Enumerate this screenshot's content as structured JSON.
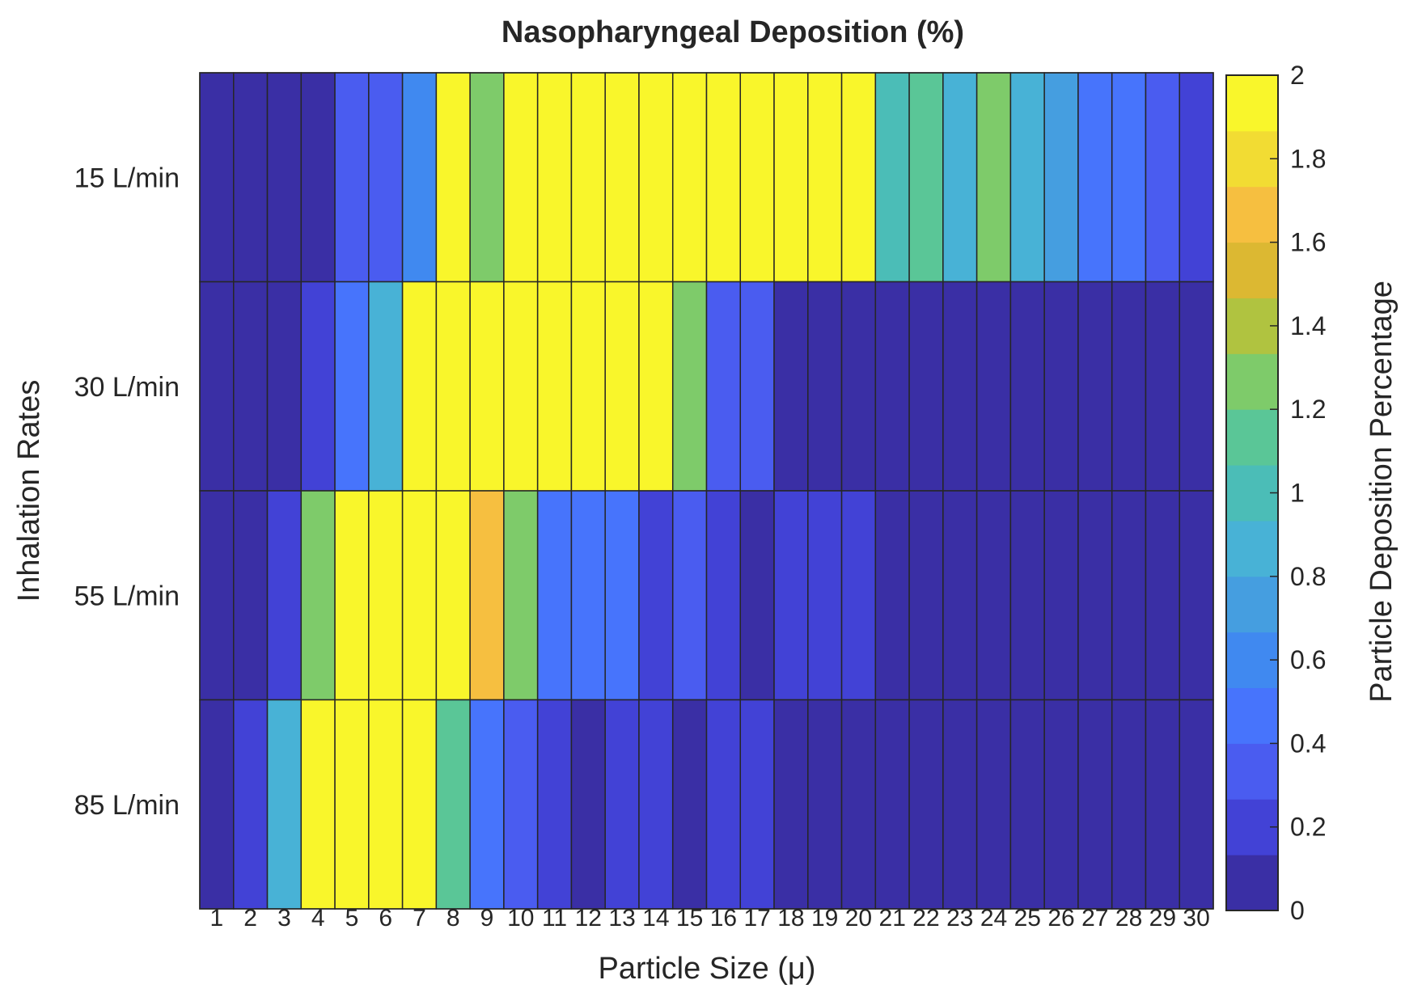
{
  "chart_data": {
    "type": "heatmap",
    "title": "Nasopharyngeal Deposition (%)",
    "xlabel": "Particle Size (μ)",
    "ylabel": "Inhalation Rates",
    "x": [
      "1",
      "2",
      "3",
      "4",
      "5",
      "6",
      "7",
      "8",
      "9",
      "10",
      "11",
      "12",
      "13",
      "14",
      "15",
      "16",
      "17",
      "18",
      "19",
      "20",
      "21",
      "22",
      "23",
      "24",
      "25",
      "26",
      "27",
      "28",
      "29",
      "30"
    ],
    "y": [
      "15 L/min",
      "30 L/min",
      "55 L/min",
      "85 L/min"
    ],
    "values": [
      [
        0.05,
        0.05,
        0.05,
        0.05,
        0.33,
        0.33,
        0.6,
        2.0,
        1.27,
        2.0,
        2.0,
        2.0,
        2.0,
        2.0,
        2.0,
        2.0,
        2.0,
        2.0,
        2.0,
        2.0,
        1.0,
        1.13,
        0.87,
        1.27,
        0.87,
        0.73,
        0.47,
        0.47,
        0.33,
        0.2
      ],
      [
        0.05,
        0.05,
        0.05,
        0.2,
        0.47,
        0.87,
        2.0,
        2.0,
        2.0,
        2.0,
        2.0,
        2.0,
        2.0,
        2.0,
        1.27,
        0.33,
        0.33,
        0.05,
        0.05,
        0.05,
        0.05,
        0.05,
        0.05,
        0.05,
        0.05,
        0.05,
        0.05,
        0.05,
        0.05,
        0.05
      ],
      [
        0.05,
        0.05,
        0.2,
        1.27,
        2.0,
        2.0,
        2.0,
        2.0,
        1.67,
        1.27,
        0.47,
        0.47,
        0.47,
        0.2,
        0.33,
        0.2,
        0.05,
        0.2,
        0.2,
        0.2,
        0.05,
        0.05,
        0.05,
        0.05,
        0.05,
        0.05,
        0.05,
        0.05,
        0.05,
        0.05
      ],
      [
        0.05,
        0.2,
        0.87,
        2.0,
        2.0,
        2.0,
        2.0,
        1.13,
        0.47,
        0.33,
        0.2,
        0.05,
        0.2,
        0.2,
        0.05,
        0.2,
        0.2,
        0.05,
        0.05,
        0.05,
        0.05,
        0.05,
        0.05,
        0.05,
        0.05,
        0.05,
        0.05,
        0.05,
        0.05,
        0.05
      ]
    ],
    "clim": [
      0,
      2
    ],
    "colorbar": {
      "label": "Particle Deposition Percentage",
      "ticks": [
        "0",
        "0.2",
        "0.4",
        "0.6",
        "0.8",
        "1",
        "1.2",
        "1.4",
        "1.6",
        "1.8",
        "2"
      ],
      "tick_values": [
        0,
        0.2,
        0.4,
        0.6,
        0.8,
        1,
        1.2,
        1.4,
        1.6,
        1.8,
        2
      ],
      "levels": 15,
      "colors": [
        "#3a2fa5",
        "#4242d6",
        "#4a5cf0",
        "#4774fc",
        "#4089f0",
        "#459ee0",
        "#48b2d6",
        "#4bbdb7",
        "#5ac697",
        "#7ecb6a",
        "#b0c340",
        "#dcb832",
        "#f6bf40",
        "#f2dc33",
        "#f9f62b"
      ]
    },
    "grid": true
  }
}
